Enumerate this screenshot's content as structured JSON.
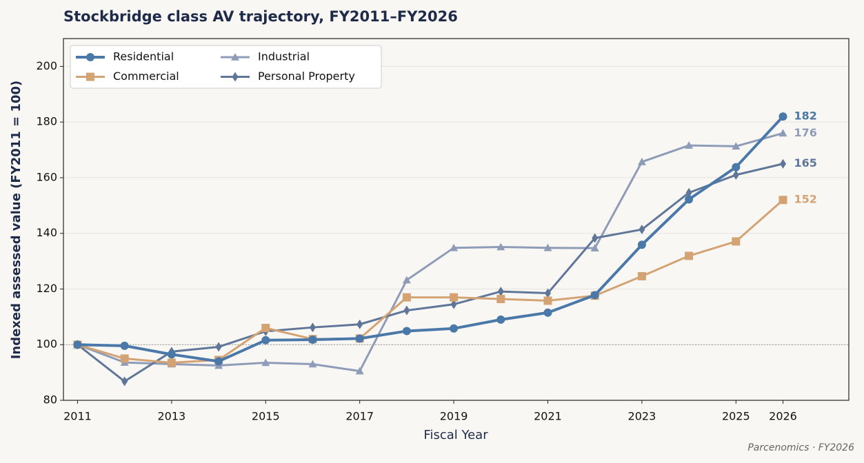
{
  "chart_data": {
    "type": "line",
    "title": "Stockbridge class AV trajectory, FY2011–FY2026",
    "xlabel": "Fiscal Year",
    "ylabel": "Indexed assessed value (FY2011 = 100)",
    "source": "Parcenomics · FY2026",
    "x": [
      2011,
      2012,
      2013,
      2014,
      2015,
      2016,
      2017,
      2018,
      2019,
      2020,
      2021,
      2022,
      2023,
      2024,
      2025,
      2026
    ],
    "xlim": [
      2010.7,
      2027.4
    ],
    "xticks": [
      2011,
      2013,
      2015,
      2017,
      2019,
      2021,
      2023,
      2025,
      2026
    ],
    "ylim": [
      80,
      210
    ],
    "yticks": [
      80,
      100,
      120,
      140,
      160,
      180,
      200
    ],
    "grid": true,
    "reference_line": 100,
    "legend": "upper left",
    "series": [
      {
        "name": "Residential",
        "color": "#4a78a8",
        "marker": "circle",
        "width": 4,
        "values": [
          100,
          99.6,
          96.5,
          94,
          101.6,
          101.8,
          102.2,
          104.9,
          105.8,
          109,
          111.5,
          117.8,
          135.9,
          152.2,
          163.8,
          182
        ]
      },
      {
        "name": "Commercial",
        "color": "#d4a373",
        "marker": "square",
        "width": 3,
        "values": [
          100,
          95,
          93.5,
          94.5,
          106,
          102,
          102.2,
          117,
          117,
          116.4,
          115.8,
          117.6,
          124.6,
          131.9,
          137.1,
          152
        ]
      },
      {
        "name": "Industrial",
        "color": "#8e9cb8",
        "marker": "triangle",
        "width": 3,
        "values": [
          100,
          93.6,
          93,
          92.5,
          93.5,
          93,
          90.5,
          123.2,
          134.8,
          135.1,
          134.8,
          134.7,
          165.7,
          171.6,
          171.3,
          176
        ]
      },
      {
        "name": "Personal Property",
        "color": "#5f7699",
        "marker": "diamond",
        "width": 3,
        "values": [
          100,
          86.8,
          97.5,
          99.2,
          104.8,
          106.2,
          107.3,
          112.3,
          114.5,
          119.1,
          118.5,
          138.3,
          141.4,
          154.6,
          161,
          165
        ]
      }
    ]
  }
}
